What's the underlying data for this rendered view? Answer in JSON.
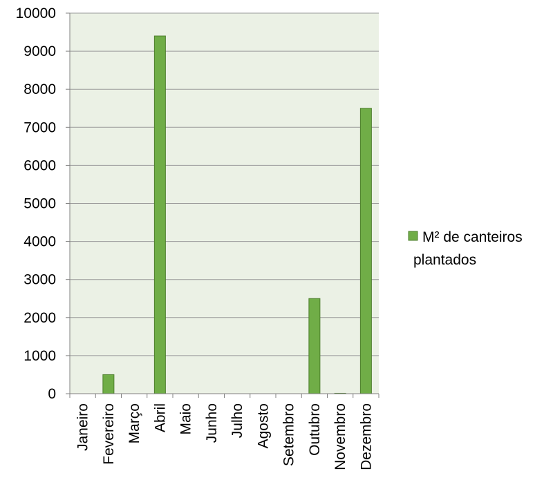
{
  "chart_data": {
    "type": "bar",
    "categories": [
      "Janeiro",
      "Fevereiro",
      "Março",
      "Abril",
      "Maio",
      "Junho",
      "Julho",
      "Agosto",
      "Setembro",
      "Outubro",
      "Novembro",
      "Dezembro"
    ],
    "series": [
      {
        "name": "M² de canteiros plantados",
        "values": [
          0,
          500,
          0,
          9400,
          0,
          0,
          0,
          0,
          0,
          2500,
          10,
          7500
        ]
      }
    ],
    "ylim": [
      0,
      10000
    ],
    "yticks": [
      0,
      1000,
      2000,
      3000,
      4000,
      5000,
      6000,
      7000,
      8000,
      9000,
      10000
    ],
    "grid": true,
    "legend_position": "right",
    "colors": {
      "bar_fill": "#70ad47",
      "bar_stroke": "#4e7f2e",
      "plot_background": "#ebf1e5",
      "gridline": "#9a9a9a",
      "axis": "#808080"
    },
    "legend": {
      "lines": [
        "M² de canteiros",
        "plantados"
      ]
    }
  }
}
